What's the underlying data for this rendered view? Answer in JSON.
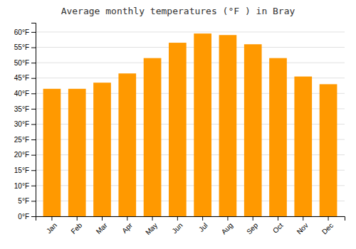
{
  "chart_data": {
    "type": "bar",
    "title": "Average monthly temperatures (°F ) in Bray",
    "categories": [
      "Jan",
      "Feb",
      "Mar",
      "Apr",
      "May",
      "Jun",
      "Jul",
      "Aug",
      "Sep",
      "Oct",
      "Nov",
      "Dec"
    ],
    "values": [
      41.5,
      41.5,
      43.5,
      46.5,
      51.5,
      56.5,
      59.5,
      59.0,
      56.0,
      51.5,
      45.5,
      43.0
    ],
    "color": "#FF9900",
    "ylim": [
      0,
      63
    ],
    "yticks": [
      {
        "value": 0,
        "label": "0°F"
      },
      {
        "value": 5,
        "label": "5°F"
      },
      {
        "value": 10,
        "label": "10°F"
      },
      {
        "value": 15,
        "label": "15°F"
      },
      {
        "value": 20,
        "label": "20°F"
      },
      {
        "value": 25,
        "label": "25°F"
      },
      {
        "value": 30,
        "label": "30°F"
      },
      {
        "value": 35,
        "label": "35°F"
      },
      {
        "value": 40,
        "label": "40°F"
      },
      {
        "value": 45,
        "label": "45°F"
      },
      {
        "value": 50,
        "label": "50°F"
      },
      {
        "value": 55,
        "label": "55°F"
      },
      {
        "value": 60,
        "label": "60°F"
      }
    ],
    "grid": true
  }
}
